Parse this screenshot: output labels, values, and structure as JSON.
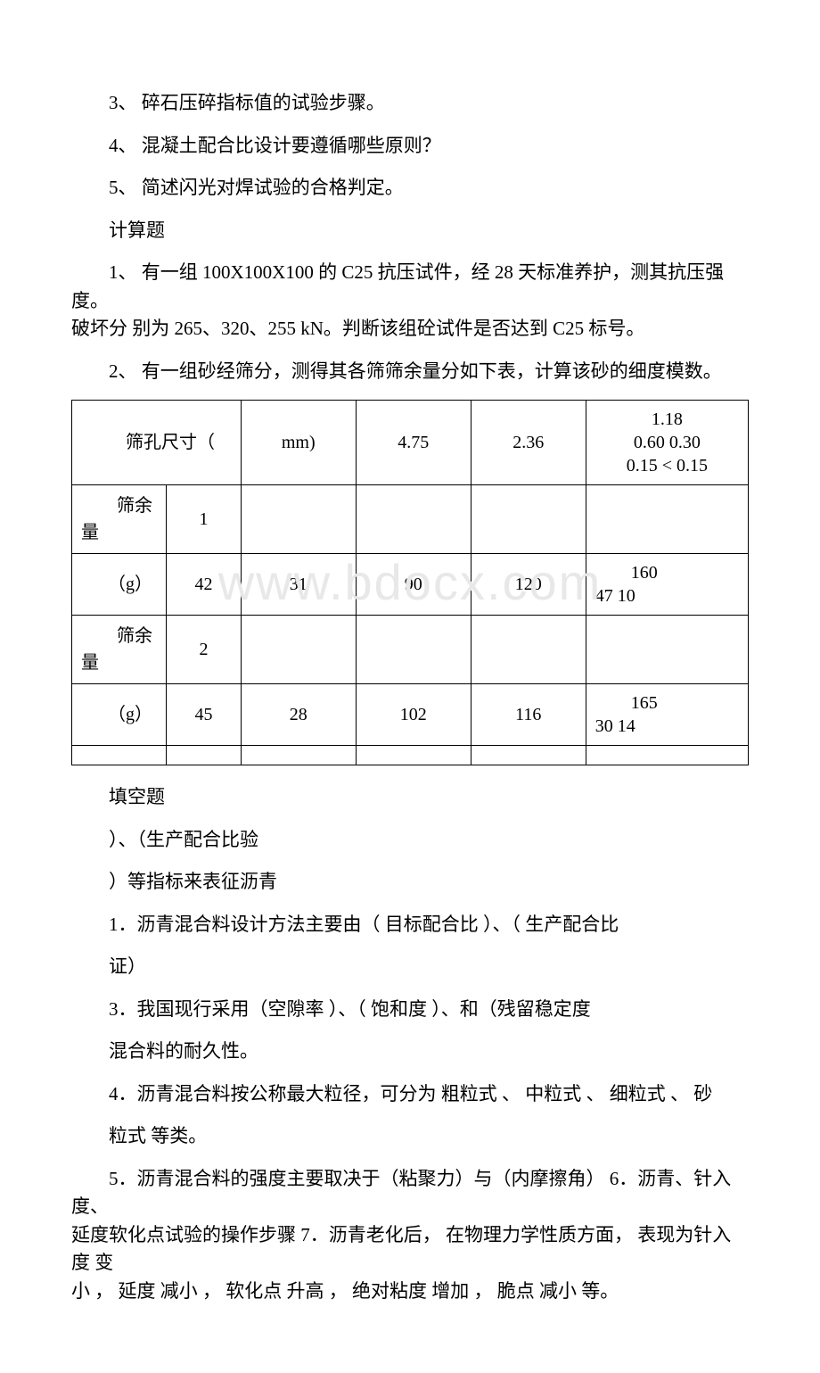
{
  "questions": {
    "q3": "3、 碎石压碎指标值的试验步骤。",
    "q4": "4、 混凝土配合比设计要遵循哪些原则？",
    "q5": "5、 简述闪光对焊试验的合格判定。"
  },
  "calc_title": "计算题",
  "calc_q1_line1": "1、 有一组 100X100X100 的 C25 抗压试件，经 28 天标准养护，测其抗压强度。",
  "calc_q1_line2": "破坏分 别为 265、320、255 kN。判断该组砼试件是否达到 C25 标号。",
  "calc_q2": "2、 有一组砂经筛分，测得其各筛筛余量分如下表，计算该砂的细度模数。",
  "table": {
    "rows": [
      {
        "c1": "　　筛孔尺寸（",
        "c2": "",
        "c3": "mm)",
        "c4": "4.75",
        "c5": "2.36",
        "c6": "1.18\n0.60 0.30\n0.15 < 0.15"
      },
      {
        "c1": "　　筛余量",
        "c2": "1",
        "c3": "",
        "c4": "",
        "c5": "",
        "c6": ""
      },
      {
        "c1": "　　（g）",
        "c2": "42",
        "c3": "31",
        "c4": "90",
        "c5": "120",
        "c6": "　　160\n47 10"
      },
      {
        "c1": "　　筛余量",
        "c2": "2",
        "c3": "",
        "c4": "",
        "c5": "",
        "c6": ""
      },
      {
        "c1": "　　（g）",
        "c2": "45",
        "c3": "28",
        "c4": "102",
        "c5": "116",
        "c6": "　　165\n30 14"
      }
    ]
  },
  "watermark": "www.bdocx.com",
  "fill_title": "填空题",
  "fill_line1": "）、（生产配合比验",
  "fill_line2": "）等指标来表征沥青",
  "fill_1": "1．沥青混合料设计方法主要由（ 目标配合比 ）、（ 生产配合比",
  "fill_zheng": "证）",
  "fill_3": "3．我国现行采用（空隙率 ）、（ 饱和度 ）、和（残留稳定度",
  "fill_durability": "混合料的耐久性。",
  "fill_4": "4．沥青混合料按公称最大粒径，可分为 粗粒式 、 中粒式 、 细粒式 、 砂",
  "fill_type": "粒式 等类。",
  "fill_5_line1": "5．沥青混合料的强度主要取决于（粘聚力）与（内摩擦角） 6．沥青、针入度、",
  "fill_5_line2": "延度软化点试验的操作步骤 7．沥青老化后， 在物理力学性质方面， 表现为针入度 变",
  "fill_5_line3": "小 ， 延度 减小 ， 软化点 升高 ， 绝对粘度 增加 ， 脆点 减小 等。",
  "colors": {
    "text": "#000000",
    "background": "#ffffff",
    "border": "#000000",
    "watermark": "#e8e8e8"
  }
}
